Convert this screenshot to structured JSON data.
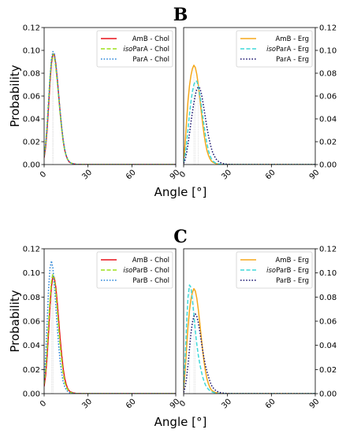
{
  "figure": {
    "panels": [
      {
        "letter": "B",
        "ylabel": "Probability",
        "xlabel": "Angle [°]",
        "chart_index_left": 0,
        "chart_index_right": 1
      },
      {
        "letter": "C",
        "ylabel": "Probability",
        "xlabel": "Angle [°]",
        "chart_index_left": 2,
        "chart_index_right": 3
      }
    ]
  },
  "chart_data": [
    {
      "type": "line",
      "panel": "B",
      "side": "left",
      "xlim": [
        0,
        90
      ],
      "ylim": [
        0,
        0.12
      ],
      "xticks": [
        "0",
        "30",
        "60",
        "90"
      ],
      "yticks": [
        "0.00",
        "0.02",
        "0.04",
        "0.06",
        "0.08",
        "0.10",
        "0.12"
      ],
      "legend_position": "top-right",
      "series": [
        {
          "name": "AmB - Chol",
          "italic_prefix": "",
          "color": "#e8121a",
          "style": "solid",
          "x": [
            0,
            1,
            2,
            3,
            4,
            5,
            6,
            7,
            8,
            9,
            10,
            11,
            12,
            13,
            14,
            15,
            16,
            17,
            18,
            20,
            22,
            25,
            30,
            40,
            90
          ],
          "y": [
            0.006,
            0.015,
            0.03,
            0.05,
            0.072,
            0.089,
            0.097,
            0.096,
            0.088,
            0.075,
            0.06,
            0.045,
            0.032,
            0.021,
            0.013,
            0.008,
            0.0045,
            0.0025,
            0.0015,
            0.0006,
            0.0002,
            5e-05,
            0,
            0,
            0
          ]
        },
        {
          "name": "ParA - Chol",
          "italic_prefix": "iso",
          "color": "#9de01a",
          "style": "dashed",
          "x": [
            0,
            1,
            2,
            3,
            4,
            5,
            6,
            7,
            8,
            9,
            10,
            11,
            12,
            13,
            14,
            15,
            16,
            17,
            18,
            20,
            22,
            25,
            30,
            40,
            90
          ],
          "y": [
            0.008,
            0.018,
            0.034,
            0.055,
            0.076,
            0.091,
            0.097,
            0.094,
            0.085,
            0.072,
            0.058,
            0.044,
            0.031,
            0.021,
            0.013,
            0.008,
            0.0048,
            0.0027,
            0.0015,
            0.0006,
            0.0002,
            5e-05,
            0,
            0,
            0
          ]
        },
        {
          "name": "ParA - Chol",
          "italic_prefix": "",
          "color": "#2a86d9",
          "style": "dotted",
          "x": [
            0,
            1,
            2,
            3,
            4,
            5,
            6,
            7,
            8,
            9,
            10,
            11,
            12,
            13,
            14,
            15,
            16,
            17,
            18,
            20,
            22,
            25,
            30,
            40,
            90
          ],
          "y": [
            0.007,
            0.017,
            0.033,
            0.054,
            0.076,
            0.092,
            0.099,
            0.097,
            0.088,
            0.075,
            0.06,
            0.046,
            0.033,
            0.022,
            0.014,
            0.0085,
            0.005,
            0.0028,
            0.0016,
            0.0006,
            0.0002,
            5e-05,
            0,
            0,
            0
          ]
        }
      ]
    },
    {
      "type": "line",
      "panel": "B",
      "side": "right",
      "xlim": [
        0,
        90
      ],
      "ylim": [
        0,
        0.12
      ],
      "xticks": [
        "0",
        "30",
        "60",
        "90"
      ],
      "yticks": [
        "0.00",
        "0.02",
        "0.04",
        "0.06",
        "0.08",
        "0.10",
        "0.12"
      ],
      "legend_position": "top-right",
      "series": [
        {
          "name": "AmB - Erg",
          "italic_prefix": "",
          "color": "#f5a81b",
          "style": "solid",
          "x": [
            0,
            1,
            2,
            3,
            4,
            5,
            6,
            7,
            8,
            9,
            10,
            11,
            12,
            13,
            14,
            15,
            16,
            17,
            18,
            19,
            20,
            22,
            24,
            26,
            28,
            30,
            35,
            40,
            90
          ],
          "y": [
            0.004,
            0.018,
            0.038,
            0.056,
            0.069,
            0.078,
            0.084,
            0.087,
            0.085,
            0.079,
            0.07,
            0.059,
            0.047,
            0.036,
            0.026,
            0.018,
            0.012,
            0.008,
            0.005,
            0.003,
            0.002,
            0.0008,
            0.0003,
            0.0001,
            0,
            0,
            0,
            0,
            0
          ]
        },
        {
          "name": "ParA - Erg",
          "italic_prefix": "iso",
          "color": "#3ed8d8",
          "style": "dashed",
          "x": [
            0,
            1,
            2,
            3,
            4,
            5,
            6,
            7,
            8,
            9,
            10,
            11,
            12,
            13,
            14,
            15,
            16,
            17,
            18,
            19,
            20,
            22,
            24,
            26,
            28,
            30,
            35,
            40,
            90
          ],
          "y": [
            0.002,
            0.008,
            0.018,
            0.031,
            0.044,
            0.055,
            0.064,
            0.07,
            0.073,
            0.073,
            0.069,
            0.062,
            0.053,
            0.043,
            0.034,
            0.025,
            0.018,
            0.012,
            0.008,
            0.005,
            0.003,
            0.0012,
            0.0005,
            0.0002,
            0.0001,
            0,
            0,
            0,
            0
          ]
        },
        {
          "name": "ParA - Erg",
          "italic_prefix": "",
          "color": "#1c1670",
          "style": "dotted",
          "x": [
            0,
            1,
            2,
            3,
            4,
            5,
            6,
            7,
            8,
            9,
            10,
            11,
            12,
            13,
            14,
            15,
            16,
            17,
            18,
            19,
            20,
            22,
            24,
            26,
            28,
            30,
            35,
            40,
            90
          ],
          "y": [
            0.001,
            0.004,
            0.01,
            0.018,
            0.027,
            0.037,
            0.046,
            0.054,
            0.061,
            0.066,
            0.068,
            0.067,
            0.063,
            0.056,
            0.048,
            0.04,
            0.032,
            0.025,
            0.019,
            0.014,
            0.01,
            0.005,
            0.0025,
            0.0012,
            0.0005,
            0.0002,
            0,
            0,
            0
          ]
        }
      ]
    },
    {
      "type": "line",
      "panel": "C",
      "side": "left",
      "xlim": [
        0,
        90
      ],
      "ylim": [
        0,
        0.12
      ],
      "xticks": [
        "0",
        "30",
        "60",
        "90"
      ],
      "yticks": [
        "0.00",
        "0.02",
        "0.04",
        "0.06",
        "0.08",
        "0.10",
        "0.12"
      ],
      "legend_position": "top-right",
      "series": [
        {
          "name": "AmB - Chol",
          "italic_prefix": "",
          "color": "#e8121a",
          "style": "solid",
          "x": [
            0,
            1,
            2,
            3,
            4,
            5,
            6,
            7,
            8,
            9,
            10,
            11,
            12,
            13,
            14,
            15,
            16,
            17,
            18,
            20,
            22,
            25,
            30,
            40,
            90
          ],
          "y": [
            0.006,
            0.015,
            0.03,
            0.05,
            0.072,
            0.089,
            0.097,
            0.096,
            0.088,
            0.075,
            0.06,
            0.045,
            0.032,
            0.021,
            0.013,
            0.008,
            0.0045,
            0.0025,
            0.0015,
            0.0006,
            0.0002,
            5e-05,
            0,
            0,
            0
          ]
        },
        {
          "name": "ParB - Chol",
          "italic_prefix": "iso",
          "color": "#9de01a",
          "style": "dashed",
          "x": [
            0,
            1,
            2,
            3,
            4,
            5,
            6,
            7,
            8,
            9,
            10,
            11,
            12,
            13,
            14,
            15,
            16,
            17,
            18,
            20,
            22,
            25,
            30,
            40,
            90
          ],
          "y": [
            0.008,
            0.019,
            0.036,
            0.058,
            0.078,
            0.093,
            0.099,
            0.095,
            0.084,
            0.069,
            0.053,
            0.039,
            0.027,
            0.017,
            0.01,
            0.006,
            0.0035,
            0.002,
            0.001,
            0.0004,
            0.0001,
            0,
            0,
            0,
            0
          ]
        },
        {
          "name": "ParB - Chol",
          "italic_prefix": "",
          "color": "#2a86d9",
          "style": "dotted",
          "x": [
            0,
            1,
            2,
            3,
            4,
            5,
            6,
            7,
            8,
            9,
            10,
            11,
            12,
            13,
            14,
            15,
            16,
            17,
            18,
            20,
            22,
            25,
            30,
            40,
            90
          ],
          "y": [
            0.01,
            0.03,
            0.058,
            0.086,
            0.104,
            0.11,
            0.104,
            0.09,
            0.072,
            0.055,
            0.039,
            0.026,
            0.017,
            0.01,
            0.006,
            0.0035,
            0.002,
            0.001,
            0.0006,
            0.0002,
            5e-05,
            0,
            0,
            0,
            0
          ]
        }
      ]
    },
    {
      "type": "line",
      "panel": "C",
      "side": "right",
      "xlim": [
        0,
        90
      ],
      "ylim": [
        0,
        0.12
      ],
      "xticks": [
        "0",
        "30",
        "60",
        "90"
      ],
      "yticks": [
        "0.00",
        "0.02",
        "0.04",
        "0.06",
        "0.08",
        "0.10",
        "0.12"
      ],
      "legend_position": "top-right",
      "series": [
        {
          "name": "AmB - Erg",
          "italic_prefix": "",
          "color": "#f5a81b",
          "style": "solid",
          "x": [
            0,
            1,
            2,
            3,
            4,
            5,
            6,
            7,
            8,
            9,
            10,
            11,
            12,
            13,
            14,
            15,
            16,
            17,
            18,
            19,
            20,
            22,
            24,
            26,
            28,
            30,
            35,
            40,
            90
          ],
          "y": [
            0.004,
            0.018,
            0.038,
            0.056,
            0.069,
            0.078,
            0.084,
            0.087,
            0.085,
            0.079,
            0.07,
            0.059,
            0.047,
            0.036,
            0.026,
            0.018,
            0.012,
            0.008,
            0.005,
            0.003,
            0.002,
            0.0008,
            0.0003,
            0.0001,
            0,
            0,
            0,
            0,
            0
          ]
        },
        {
          "name": "ParB - Erg",
          "italic_prefix": "iso",
          "color": "#3ed8d8",
          "style": "dashed",
          "x": [
            0,
            1,
            2,
            3,
            4,
            5,
            6,
            7,
            8,
            9,
            10,
            11,
            12,
            13,
            14,
            15,
            16,
            17,
            18,
            19,
            20,
            22,
            24,
            26,
            28,
            30,
            35,
            40,
            90
          ],
          "y": [
            0.006,
            0.028,
            0.058,
            0.08,
            0.09,
            0.088,
            0.078,
            0.065,
            0.052,
            0.041,
            0.032,
            0.025,
            0.019,
            0.014,
            0.01,
            0.007,
            0.005,
            0.0035,
            0.0025,
            0.0017,
            0.0011,
            0.0005,
            0.0002,
            0.0001,
            0,
            0,
            0,
            0,
            0
          ]
        },
        {
          "name": "ParB - Erg",
          "italic_prefix": "",
          "color": "#1c1670",
          "style": "dotted",
          "x": [
            0,
            1,
            2,
            3,
            4,
            5,
            6,
            7,
            8,
            9,
            10,
            11,
            12,
            13,
            14,
            15,
            16,
            17,
            18,
            19,
            20,
            22,
            24,
            26,
            28,
            30,
            35,
            40,
            90
          ],
          "y": [
            0.001,
            0.005,
            0.013,
            0.024,
            0.037,
            0.05,
            0.059,
            0.064,
            0.066,
            0.064,
            0.059,
            0.052,
            0.044,
            0.036,
            0.029,
            0.023,
            0.018,
            0.014,
            0.01,
            0.007,
            0.005,
            0.0025,
            0.0012,
            0.0006,
            0.0003,
            0.0001,
            0,
            0,
            0
          ]
        }
      ]
    }
  ]
}
